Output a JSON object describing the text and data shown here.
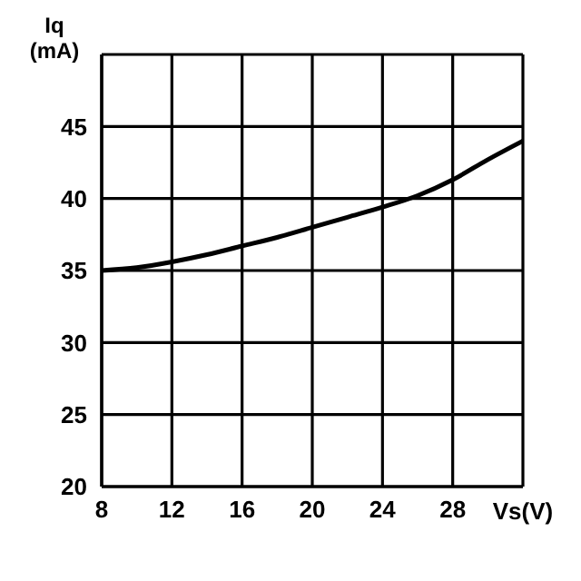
{
  "chart_data": {
    "type": "line",
    "xlabel": "Vs(V)",
    "ylabel": "Iq (mA)",
    "x": [
      8,
      10,
      12,
      14,
      16,
      18,
      20,
      22,
      24,
      26,
      28,
      30,
      32
    ],
    "series": [
      {
        "color": "#000000",
        "values": [
          35,
          35.2,
          35.6,
          36.1,
          36.7,
          37.3,
          38,
          38.7,
          39.4,
          40.2,
          41.3,
          42.7,
          44
        ]
      }
    ],
    "xlim": [
      8,
      32
    ],
    "xticks": [
      8,
      12,
      16,
      20,
      24,
      28
    ],
    "ylim": [
      20,
      50
    ],
    "yticks": [
      20,
      25,
      30,
      35,
      40,
      45
    ],
    "grid": true,
    "marker": "none",
    "line_style": "solid",
    "legend": false
  }
}
